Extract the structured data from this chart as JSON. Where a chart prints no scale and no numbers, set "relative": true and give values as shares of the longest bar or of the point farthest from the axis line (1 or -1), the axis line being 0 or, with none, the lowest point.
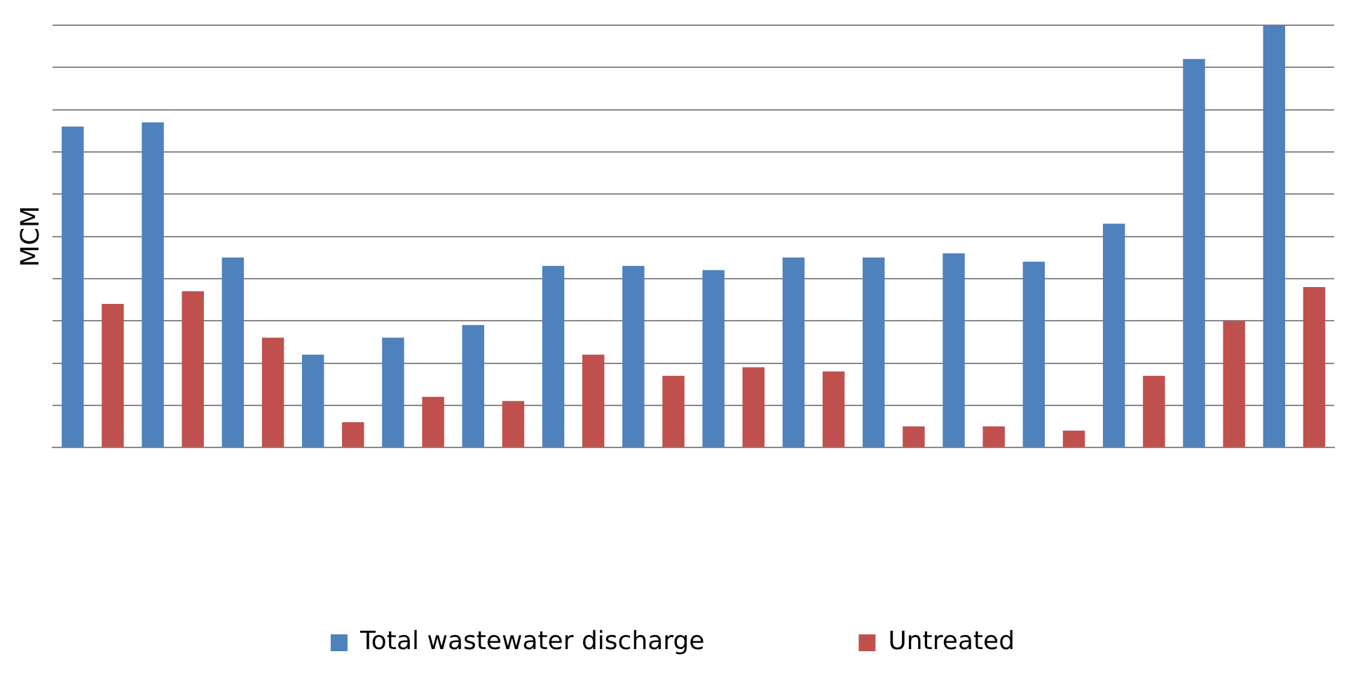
{
  "chart_data": {
    "type": "bar",
    "ylabel": "MCM",
    "relative": true,
    "grid": "y",
    "legend": "bottom",
    "categories": [
      null,
      null,
      null,
      null,
      null,
      null,
      null,
      null,
      null,
      null,
      null,
      null,
      null,
      null,
      null,
      null
    ],
    "series": [
      {
        "name": "Total wastewater discharge",
        "color": "#4f81bd",
        "values": [
          0.76,
          0.77,
          0.45,
          0.22,
          0.26,
          0.29,
          0.43,
          0.43,
          0.42,
          0.45,
          0.45,
          0.46,
          0.44,
          0.53,
          0.92,
          1
        ]
      },
      {
        "name": "Untreated",
        "color": "#c0504d",
        "values": [
          0.34,
          0.37,
          0.26,
          0.06,
          0.12,
          0.11,
          0.22,
          0.17,
          0.19,
          0.18,
          0.05,
          0.05,
          0.04,
          0.17,
          0.3,
          0.38
        ]
      }
    ]
  }
}
